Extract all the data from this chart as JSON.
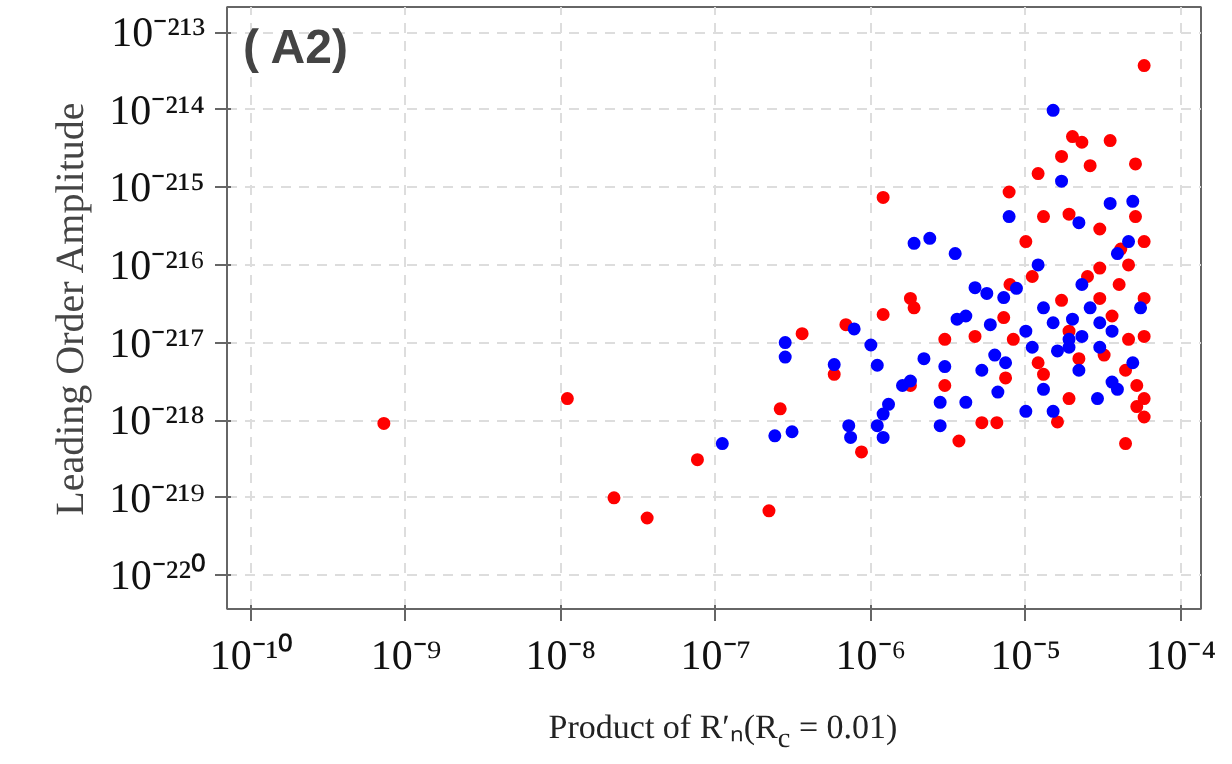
{
  "chart_data": {
    "type": "scatter",
    "xlabel": "Product of R′ₙ(R$_{c}$ = 0.01)",
    "ylabel": "Leading Order Amplitude",
    "annotations": [
      "( A2)"
    ],
    "log": "xy",
    "grid": true,
    "marker": "circle",
    "xlim": [
      7e-11,
      0.000135
    ],
    "ylim": [
      3.7e-221,
      2.1e-213
    ],
    "xticks": [
      {
        "value": 1e-10,
        "label": "10⁻¹⁰"
      },
      {
        "value": 1e-09,
        "label": "10⁻⁹"
      },
      {
        "value": 1e-08,
        "label": "10⁻⁸"
      },
      {
        "value": 1e-07,
        "label": "10⁻⁷"
      },
      {
        "value": 1e-06,
        "label": "10⁻⁶"
      },
      {
        "value": 1e-05,
        "label": "10⁻⁵"
      },
      {
        "value": 0.0001,
        "label": "10⁻⁴"
      }
    ],
    "yticks": [
      {
        "value": 1e-220,
        "label": "10⁻²²⁰"
      },
      {
        "value": 1e-219,
        "label": "10⁻²¹⁹"
      },
      {
        "value": 1e-218,
        "label": "10⁻²¹⁸"
      },
      {
        "value": 1e-217,
        "label": "10⁻²¹⁷"
      },
      {
        "value": 1e-216,
        "label": "10⁻²¹⁶"
      },
      {
        "value": 1e-215,
        "label": "10⁻²¹⁵"
      },
      {
        "value": 1e-214,
        "label": "10⁻²¹⁴"
      },
      {
        "value": 1e-213,
        "label": "10⁻²¹³"
      }
    ],
    "series": [
      {
        "color": "#ff0000",
        "x": [
          7.2e-10,
          1.1e-08,
          2.2e-08,
          3.6e-08,
          7.6e-08,
          2.2e-07,
          2.6e-07,
          3.6e-07,
          5.8e-07,
          6.9e-07,
          8.7e-07,
          1.2e-06,
          1.2e-06,
          1.8e-06,
          1.9e-06,
          1.8e-06,
          3e-06,
          3.7e-06,
          3e-06,
          5.2e-06,
          6.5e-06,
          7.8e-06,
          7.9e-06,
          7.2e-06,
          1e-05,
          1.2e-05,
          1.3e-05,
          1.7e-05,
          2e-05,
          2.3e-05,
          2.6e-05,
          3.5e-05,
          5.1e-05,
          5.8e-05,
          1.6e-05,
          1.9e-05,
          4.4e-05,
          5.8e-05,
          5.8e-05,
          5.2e-05,
          1.9e-05,
          3e-05,
          5.1e-05,
          4.1e-05,
          3e-05,
          4.6e-05,
          5.8e-05,
          4e-05,
          2.5e-05,
          1.1e-05,
          1.7e-05,
          3.6e-05,
          4.6e-05,
          5.8e-05,
          3.2e-05,
          4.4e-05,
          8.3e-06,
          1.2e-05,
          1.3e-05,
          7.4e-06,
          2.2e-05,
          5.2e-05,
          1.9e-05,
          4.7e-06,
          3e-05,
          5.8e-05
        ],
        "values": [
          9.1e-219,
          1.9e-218,
          1e-219,
          5.5e-220,
          3.1e-219,
          6.8e-220,
          1.4e-218,
          1.3e-217,
          3.9e-218,
          1.7e-217,
          3.9e-219,
          7.4e-216,
          2.3e-217,
          3.7e-217,
          2.8e-217,
          2.8e-218,
          2.8e-218,
          5.4e-219,
          1.1e-217,
          9.3e-219,
          9.3e-219,
          8.7e-216,
          5.6e-217,
          2.1e-217,
          2e-216,
          1.5e-215,
          4.2e-216,
          2.5e-215,
          4.5e-215,
          3.8e-215,
          1.9e-215,
          4e-215,
          2e-215,
          3.7e-214,
          9.5e-219,
          1.9e-218,
          5e-219,
          1.9e-218,
          1.1e-218,
          1.5e-218,
          4.5e-216,
          2.9e-216,
          4.2e-216,
          1.6e-216,
          9.1e-217,
          1e-216,
          3.7e-217,
          5.6e-217,
          7.1e-217,
          7.1e-217,
          3.5e-217,
          2.2e-217,
          1.1e-217,
          1.2e-217,
          6.9e-218,
          4.4e-218,
          1.1e-217,
          5.5e-218,
          3.9e-218,
          3.5e-218,
          6.2e-218,
          2.8e-218,
          1.4e-217,
          1.2e-217,
          3.7e-217,
          2e-216
        ]
      },
      {
        "color": "#0000ff",
        "x": [
          1.1e-07,
          2.4e-07,
          3.1e-07,
          2.8e-07,
          2.8e-07,
          5.8e-07,
          7.2e-07,
          7.4e-07,
          7.8e-07,
          1e-06,
          1.1e-06,
          1.1e-06,
          1.2e-06,
          1.2e-06,
          1.3e-06,
          1.6e-06,
          1.8e-06,
          2.2e-06,
          1.9e-06,
          2.4e-06,
          3.5e-06,
          2.8e-06,
          2.8e-06,
          3e-06,
          3.6e-06,
          4.1e-06,
          4.1e-06,
          4.7e-06,
          5.6e-06,
          5.9e-06,
          7.2e-06,
          5.2e-06,
          6.6e-06,
          7.8e-06,
          8.7e-06,
          1e-05,
          1.2e-05,
          1.5e-05,
          1.7e-05,
          2.2e-05,
          1.5e-05,
          1.3e-05,
          1.5e-05,
          1.9e-05,
          1.9e-05,
          2e-05,
          1.6e-05,
          1.1e-05,
          1e-05,
          2.3e-05,
          2.6e-05,
          3e-05,
          3.6e-05,
          2.9e-05,
          3.6e-05,
          3.9e-05,
          3.5e-05,
          4.9e-05,
          4.6e-05,
          3.9e-05,
          5.5e-05,
          4.9e-05,
          2.3e-05,
          3e-05,
          2.2e-05,
          7.4e-06,
          1.3e-05,
          6.3e-06
        ],
        "values": [
          5e-219,
          6.3e-219,
          7.1e-219,
          1e-217,
          6.5e-218,
          5.2e-218,
          8.5e-219,
          6e-219,
          1.5e-217,
          9.3e-218,
          5.1e-218,
          8.5e-219,
          1.2e-218,
          6e-219,
          1.6e-218,
          2.8e-218,
          3.2e-218,
          6.2e-218,
          1.9e-216,
          2.2e-216,
          1.4e-216,
          8.5e-219,
          1.7e-218,
          4.9e-218,
          2e-217,
          2.2e-217,
          1.7e-218,
          5.1e-217,
          4.3e-217,
          1.7e-217,
          3.8e-217,
          4.4e-218,
          2.3e-218,
          4.2e-216,
          5e-217,
          1.3e-218,
          1e-216,
          9.8e-215,
          1.2e-215,
          3.5e-216,
          1.3e-218,
          2.8e-217,
          1.8e-217,
          1.1e-217,
          8.7e-218,
          2e-217,
          7.8e-218,
          8.7e-218,
          1.4e-217,
          1.2e-217,
          2.8e-217,
          1.8e-217,
          1.4e-217,
          1.9e-218,
          3.1e-218,
          2.5e-218,
          6.2e-216,
          6.6e-216,
          2e-216,
          1.4e-216,
          2.8e-217,
          5.5e-218,
          5.6e-217,
          8.7e-218,
          4.4e-218,
          5.5e-218,
          2.5e-218,
          6.9e-218
        ]
      }
    ]
  }
}
